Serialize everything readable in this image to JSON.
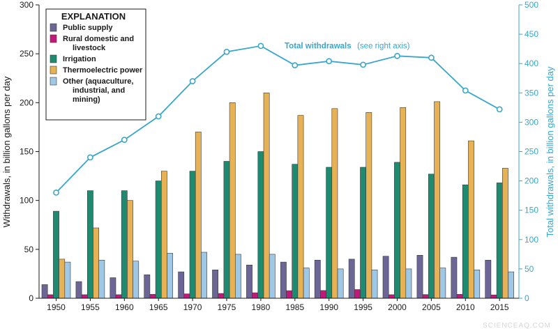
{
  "chart_data": {
    "type": "bar",
    "ylabel_left": "Withdrawals, in billion gallons per day",
    "ylabel_right": "Total withdrawals, in billion gallons per day",
    "ylim_left": [
      0,
      300
    ],
    "ylim_right": [
      0,
      500
    ],
    "yticks_left": [
      "0",
      "50",
      "100",
      "150",
      "200",
      "250",
      "300"
    ],
    "yticks_right": [
      "0",
      "50",
      "100",
      "150",
      "200",
      "250",
      "300",
      "350",
      "400",
      "450",
      "500"
    ],
    "categories": [
      "1950",
      "1955",
      "1960",
      "1965",
      "1970",
      "1975",
      "1980",
      "1985",
      "1990",
      "1995",
      "2000",
      "2005",
      "2010",
      "2015"
    ],
    "legend": {
      "title": "EXPLANATION",
      "placement": "top-left",
      "entries": [
        {
          "lines": [
            "Public supply"
          ],
          "color": "#6b6696"
        },
        {
          "lines": [
            "Rural domestic and",
            "livestock"
          ],
          "color": "#c0197a"
        },
        {
          "lines": [
            "Irrigation"
          ],
          "color": "#1f8a70"
        },
        {
          "lines": [
            "Thermoelectric power"
          ],
          "color": "#e6b255"
        },
        {
          "lines": [
            "Other (aquaculture,",
            "industrial, and",
            "mining)"
          ],
          "color": "#9ec8e5"
        }
      ]
    },
    "series": [
      {
        "name": "Public supply",
        "color": "#6b6696",
        "values": [
          14,
          17,
          21,
          24,
          27,
          29,
          34,
          37,
          39,
          40,
          43,
          44,
          42,
          39
        ]
      },
      {
        "name": "Rural domestic and livestock",
        "color": "#c0197a",
        "values": [
          3.6,
          3.6,
          3.6,
          4.0,
          4.5,
          4.9,
          5.6,
          7.8,
          7.9,
          8.9,
          3.6,
          3.8,
          4.0,
          3.4
        ]
      },
      {
        "name": "Irrigation",
        "color": "#1f8a70",
        "values": [
          89,
          110,
          110,
          120,
          130,
          140,
          150,
          137,
          134,
          134,
          139,
          127,
          116,
          118
        ]
      },
      {
        "name": "Thermoelectric power",
        "color": "#e6b255",
        "values": [
          40,
          72,
          100,
          130,
          170,
          200,
          210,
          187,
          194,
          190,
          195,
          201,
          161,
          133
        ]
      },
      {
        "name": "Other (aquaculture, industrial, and mining)",
        "color": "#9ec8e5",
        "values": [
          37,
          39,
          38,
          46,
          47,
          45,
          45,
          31,
          30,
          29,
          30,
          31,
          29,
          27
        ]
      }
    ],
    "total": {
      "name": "Total withdrawals",
      "note": "(see right axis)",
      "axis": "right",
      "color": "#3aa6c9",
      "values": [
        180,
        240,
        270,
        310,
        370,
        420,
        430,
        397,
        404,
        398,
        413,
        410,
        354,
        322
      ]
    },
    "grid": false
  },
  "watermark": "SCIENCEAQ.COM"
}
